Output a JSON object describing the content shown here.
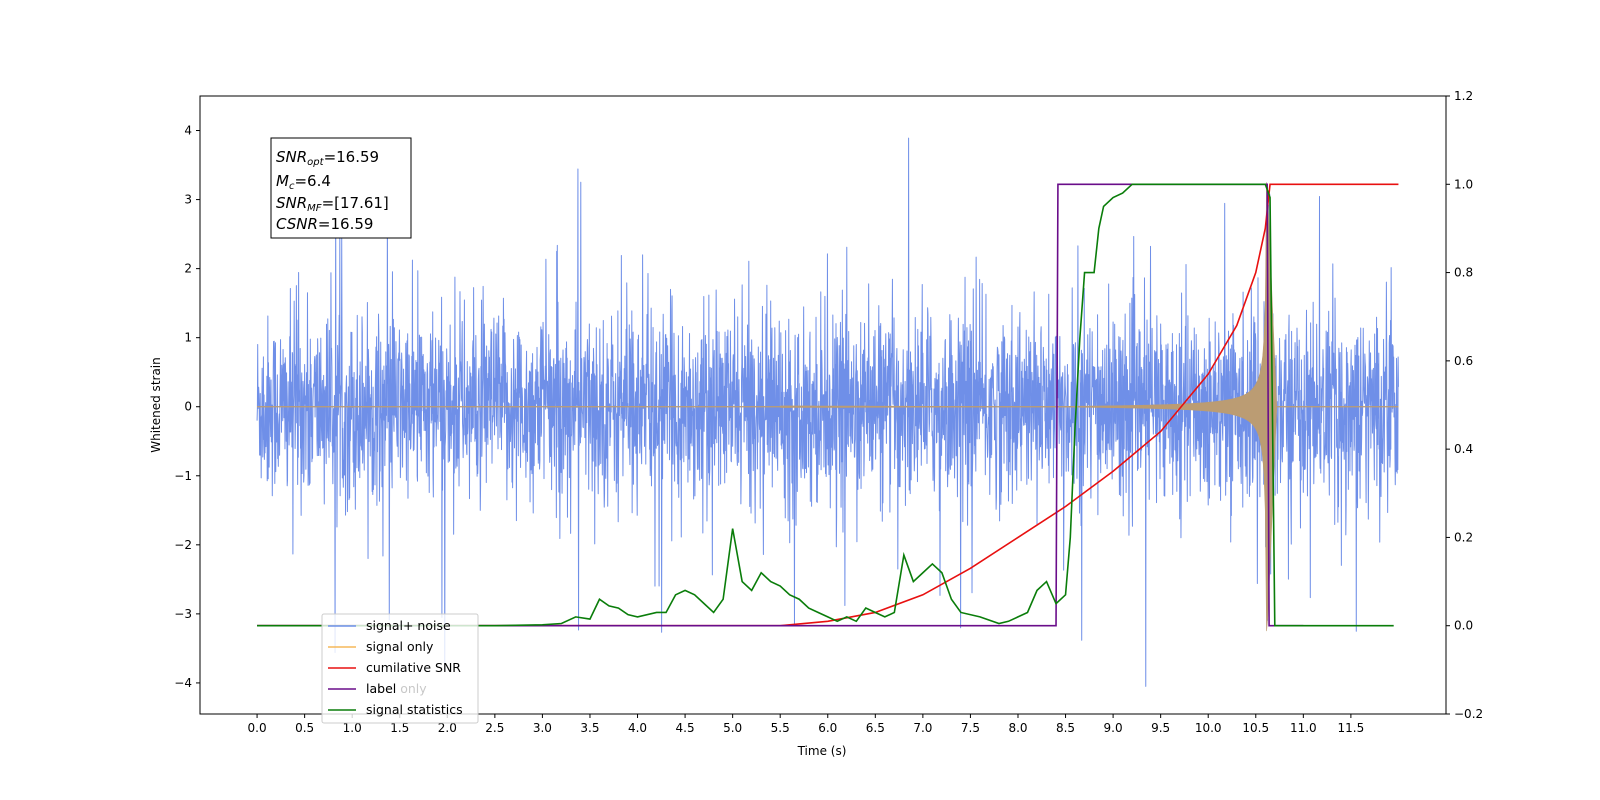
{
  "chart_data": {
    "type": "line",
    "xlabel": "Time (s)",
    "ylabel": "Whitened strain",
    "xlim": [
      -0.6,
      12.5
    ],
    "ylim": [
      -4.45,
      4.5
    ],
    "ylim_right": [
      -0.2,
      1.2
    ],
    "x_ticks": [
      "0.0",
      "0.5",
      "1.0",
      "1.5",
      "2.0",
      "2.5",
      "3.0",
      "3.5",
      "4.0",
      "4.5",
      "5.0",
      "5.5",
      "6.0",
      "6.5",
      "7.0",
      "7.5",
      "8.0",
      "8.5",
      "9.0",
      "9.5",
      "10.0",
      "10.5",
      "11.0",
      "11.5"
    ],
    "y_ticks": [
      "−4",
      "−3",
      "−2",
      "−1",
      "0",
      "1",
      "2",
      "3",
      "4"
    ],
    "y_ticks_right": [
      "−0.2",
      "0.0",
      "0.2",
      "0.4",
      "0.6",
      "0.8",
      "1.0",
      "1.2"
    ],
    "legend_position": "lower-left",
    "annotation": {
      "snr_opt": {
        "sym": "SNR",
        "sub": "opt",
        "val": "=16.59"
      },
      "mc": {
        "sym": "M",
        "sub": "c",
        "val": "=6.4"
      },
      "snr_mf": {
        "sym": "SNR",
        "sub": "MF",
        "val": "=[17.61]"
      },
      "csnr": {
        "sym": "CSNR",
        "sub": "",
        "val": "=16.59"
      }
    },
    "series": [
      {
        "name": "signal+ noise",
        "axis": "left",
        "color": "#6f8fe8",
        "description_values": {
          "t_start": 0.0,
          "t_end": 12.0,
          "noise_sigma": 0.9
        }
      },
      {
        "name": "signal only",
        "axis": "left",
        "color": "#f5b85a",
        "chirp": {
          "t_start": 5.5,
          "t_merger": 10.62,
          "peak_amplitude": 3.25,
          "decay_end": 10.72
        }
      },
      {
        "name": "cumilative SNR",
        "axis": "right",
        "color": "#e81010",
        "x": [
          0.0,
          5.5,
          6.0,
          6.5,
          7.0,
          7.5,
          8.0,
          8.5,
          9.0,
          9.5,
          10.0,
          10.3,
          10.5,
          10.6,
          10.65,
          11.0,
          12.0
        ],
        "y": [
          0.0,
          0.0,
          0.01,
          0.03,
          0.07,
          0.13,
          0.2,
          0.27,
          0.35,
          0.44,
          0.57,
          0.68,
          0.8,
          0.9,
          1.0,
          1.0,
          1.0
        ]
      },
      {
        "name": "label",
        "axis": "right",
        "color": "#6a0d8a",
        "x": [
          0.0,
          8.4,
          8.42,
          10.62,
          10.64,
          11.0
        ],
        "y": [
          0.0,
          0.0,
          1.0,
          1.0,
          0.0,
          0.0
        ]
      },
      {
        "name": "label only",
        "axis": "right",
        "color": "#c8c8c8",
        "x": [],
        "y": []
      },
      {
        "name": "signal statistics",
        "axis": "right",
        "color": "#0a7d0a",
        "x": [
          0.0,
          0.5,
          1.0,
          1.5,
          2.0,
          2.5,
          3.0,
          3.2,
          3.35,
          3.5,
          3.6,
          3.7,
          3.8,
          3.9,
          4.0,
          4.2,
          4.3,
          4.4,
          4.5,
          4.6,
          4.7,
          4.8,
          4.9,
          5.0,
          5.1,
          5.2,
          5.3,
          5.4,
          5.5,
          5.6,
          5.7,
          5.8,
          5.9,
          6.0,
          6.1,
          6.2,
          6.3,
          6.4,
          6.5,
          6.6,
          6.7,
          6.8,
          6.9,
          7.0,
          7.1,
          7.2,
          7.3,
          7.4,
          7.6,
          7.8,
          7.9,
          8.0,
          8.1,
          8.2,
          8.3,
          8.4,
          8.5,
          8.55,
          8.6,
          8.65,
          8.7,
          8.8,
          8.85,
          8.9,
          9.0,
          9.1,
          9.2,
          9.3,
          9.5,
          10.0,
          10.5,
          10.6,
          10.65,
          10.7,
          11.0,
          11.5,
          11.95
        ],
        "y": [
          0.0,
          0.0,
          0.0,
          0.0,
          0.0,
          0.0,
          0.002,
          0.005,
          0.02,
          0.015,
          0.06,
          0.045,
          0.04,
          0.025,
          0.02,
          0.03,
          0.03,
          0.07,
          0.08,
          0.07,
          0.05,
          0.03,
          0.06,
          0.22,
          0.1,
          0.08,
          0.12,
          0.1,
          0.09,
          0.07,
          0.06,
          0.04,
          0.03,
          0.02,
          0.01,
          0.02,
          0.01,
          0.04,
          0.03,
          0.02,
          0.03,
          0.16,
          0.1,
          0.12,
          0.14,
          0.12,
          0.06,
          0.03,
          0.02,
          0.005,
          0.01,
          0.02,
          0.03,
          0.08,
          0.1,
          0.05,
          0.07,
          0.2,
          0.45,
          0.65,
          0.8,
          0.8,
          0.9,
          0.95,
          0.97,
          0.98,
          1.0,
          1.0,
          1.0,
          1.0,
          1.0,
          1.0,
          0.97,
          0.0,
          0.0,
          0.0,
          0.0
        ]
      }
    ]
  }
}
